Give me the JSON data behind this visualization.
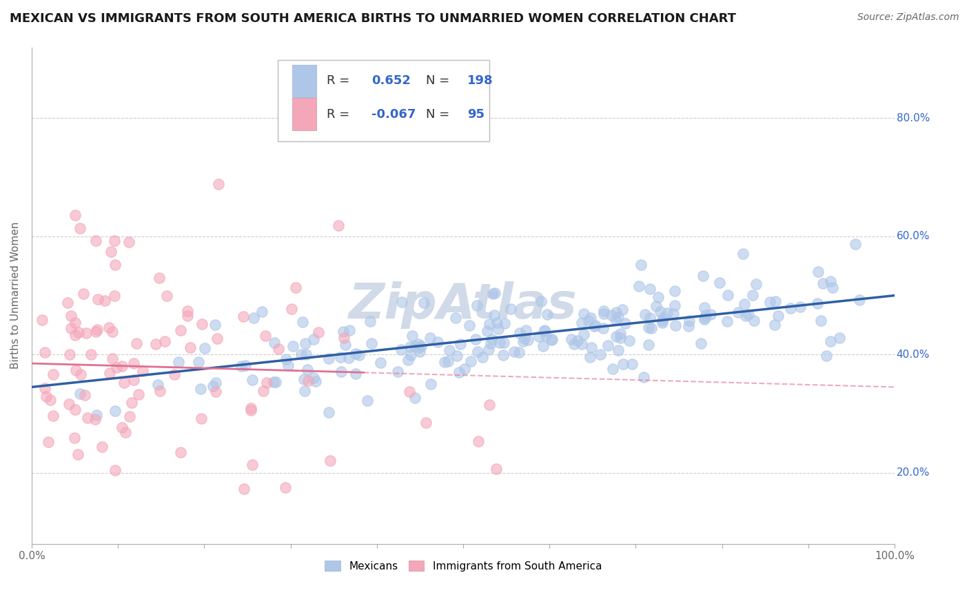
{
  "title": "MEXICAN VS IMMIGRANTS FROM SOUTH AMERICA BIRTHS TO UNMARRIED WOMEN CORRELATION CHART",
  "source": "Source: ZipAtlas.com",
  "ylabel": "Births to Unmarried Women",
  "xlim": [
    0.0,
    1.0
  ],
  "ylim": [
    0.08,
    0.92
  ],
  "xticks": [
    0.0,
    0.1,
    0.2,
    0.3,
    0.4,
    0.5,
    0.6,
    0.7,
    0.8,
    0.9,
    1.0
  ],
  "xticklabels": [
    "0.0%",
    "",
    "",
    "",
    "",
    "",
    "",
    "",
    "",
    "",
    "100.0%"
  ],
  "ytick_positions": [
    0.2,
    0.4,
    0.6,
    0.8
  ],
  "ytick_labels": [
    "20.0%",
    "40.0%",
    "60.0%",
    "80.0%"
  ],
  "blue_color": "#aec6e8",
  "pink_color": "#f4a7b9",
  "blue_line_color": "#2e5fa3",
  "pink_line_color": "#e07090",
  "background_color": "#ffffff",
  "grid_color": "#cccccc",
  "r1": 0.652,
  "n1": 198,
  "r2": -0.067,
  "n2": 95,
  "mexicans_intercept": 0.345,
  "mexicans_slope": 0.155,
  "sa_intercept": 0.385,
  "sa_slope": -0.04,
  "title_fontsize": 13,
  "axis_label_fontsize": 11,
  "tick_fontsize": 11,
  "legend_fontsize": 13,
  "watermark": "ZipAtlas",
  "watermark_color": "#d0dae8",
  "legend_r1_color": "#3366cc",
  "legend_r2_color": "#3366cc",
  "tick_color": "#3366cc"
}
